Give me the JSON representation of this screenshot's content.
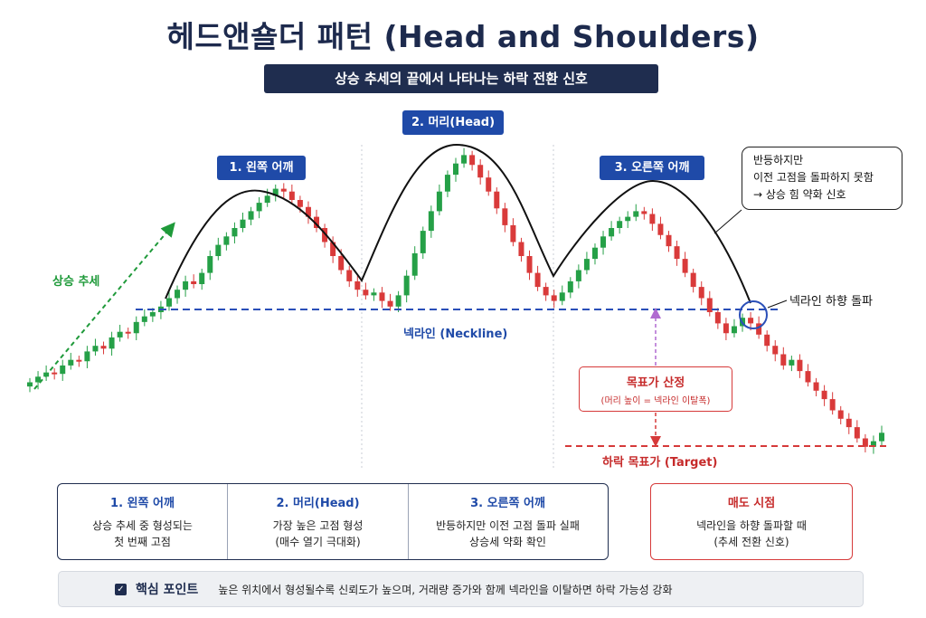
{
  "title": "헤드앤숄더 패턴 (Head and Shoulders)",
  "subtitle": "상승 추세의 끝에서 나타나는 하락 전환 신호",
  "chart_data": {
    "type": "candlestick",
    "title": "헤드앤숄더 패턴 (Head and Shoulders)",
    "colors": {
      "up": "#25a047",
      "down": "#d93a3a",
      "neckline": "#2a4fb8",
      "outline": "#111111",
      "target": "#d63a3a",
      "uptrend": "#1f9a3a"
    },
    "close_series": [
      50,
      54,
      57,
      56,
      62,
      66,
      65,
      72,
      76,
      74,
      82,
      86,
      85,
      93,
      97,
      100,
      104,
      110,
      116,
      122,
      120,
      128,
      140,
      148,
      154,
      160,
      166,
      172,
      178,
      183,
      188,
      186,
      180,
      175,
      168,
      160,
      150,
      140,
      130,
      122,
      116,
      112,
      114,
      108,
      104,
      112,
      126,
      142,
      158,
      172,
      186,
      198,
      206,
      212,
      205,
      196,
      186,
      174,
      162,
      150,
      140,
      128,
      118,
      112,
      108,
      114,
      122,
      130,
      138,
      146,
      154,
      160,
      165,
      168,
      172,
      170,
      163,
      155,
      147,
      138,
      128,
      118,
      110,
      100,
      92,
      85,
      90,
      96,
      92,
      84,
      76,
      70,
      62,
      66,
      58,
      50,
      44,
      38,
      30,
      24,
      18,
      10,
      4,
      8,
      14
    ],
    "annotations": {
      "left_shoulder": "1. 왼쪽 어깨",
      "head": "2. 머리(Head)",
      "right_shoulder": "3. 오른쪽 어깨",
      "uptrend": "상승 추세",
      "neckline": "넥라인 (Neckline)",
      "breakdown": "넥라인 하향 돌파",
      "note": [
        "반등하지만",
        "이전 고점을 돌파하지 못함",
        "→ 상승 힘 약화 신호"
      ],
      "measure_title": "목표가 산정",
      "measure_sub": "(머리 높이 = 넥라인 이탈폭)",
      "target": "하락 목표가 (Target)"
    }
  },
  "steps": [
    {
      "title": "1. 왼쪽 어깨",
      "lines": [
        "상승 추세 중 형성되는",
        "첫 번째 고점"
      ]
    },
    {
      "title": "2. 머리(Head)",
      "lines": [
        "가장 높은 고점 형성",
        "(매수 열기 극대화)"
      ]
    },
    {
      "title": "3. 오른쪽 어깨",
      "lines": [
        "반등하지만 이전 고점 돌파 실패",
        "상승세 약화 확인"
      ]
    }
  ],
  "sell": {
    "title": "매도 시점",
    "lines": [
      "넥라인을 하향 돌파할 때",
      "(추세 전환 신호)"
    ]
  },
  "key": {
    "label": "핵심 포인트",
    "text": "높은 위치에서 형성될수록 신뢰도가 높으며, 거래량 증가와 함께 넥라인을 이탈하면 하락 가능성 강화"
  }
}
